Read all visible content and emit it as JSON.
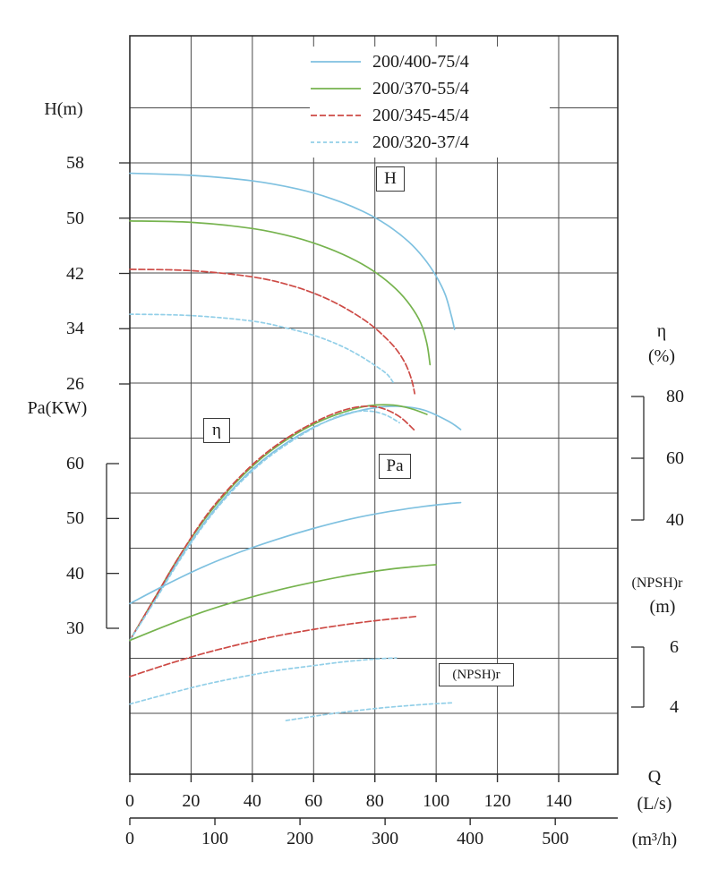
{
  "chart_data": {
    "type": "line",
    "x_axis": {
      "name": "Q",
      "unit": "(L/s)",
      "ticks": [
        0,
        20,
        40,
        60,
        80,
        100,
        120,
        140
      ],
      "range": [
        0,
        159
      ]
    },
    "x_axis_secondary": {
      "unit": "(m³/h)",
      "ticks": [
        0,
        100,
        200,
        300,
        400,
        500
      ]
    },
    "y_axes": {
      "head": {
        "label": "H(m)",
        "ticks": [
          58,
          50,
          42,
          34,
          26
        ]
      },
      "power": {
        "label": "Pa(KW)",
        "ticks": [
          60,
          50,
          40,
          30
        ]
      },
      "efficiency": {
        "label": "η",
        "unit": "(%)",
        "ticks": [
          80,
          60,
          40
        ]
      },
      "npsh": {
        "label": "(NPSH)r",
        "unit": "(m)",
        "ticks": [
          6,
          4
        ]
      }
    },
    "legend": [
      {
        "label": "200/400-75/4",
        "color": "#7fc1e0",
        "dash": ""
      },
      {
        "label": "200/370-55/4",
        "color": "#76b34e",
        "dash": ""
      },
      {
        "label": "200/345-45/4",
        "color": "#cd4a45",
        "dash": "7 3"
      },
      {
        "label": "200/320-37/4",
        "color": "#92cfe8",
        "dash": "4 3"
      }
    ],
    "annotations": [
      {
        "text": "H"
      },
      {
        "text": "η"
      },
      {
        "text": "Pa"
      },
      {
        "text": "(NPSH)r"
      }
    ],
    "series": [
      {
        "name": "head 200/400-75/4",
        "axis": "head",
        "legend": 0,
        "points": [
          [
            0,
            56.5
          ],
          [
            20,
            56.2
          ],
          [
            40,
            55.4
          ],
          [
            55,
            54.2
          ],
          [
            66,
            52.8
          ],
          [
            76,
            51.0
          ],
          [
            84,
            49.0
          ],
          [
            91,
            46.6
          ],
          [
            96,
            44.2
          ],
          [
            100,
            41.6
          ],
          [
            103,
            38.9
          ],
          [
            105,
            35.8
          ],
          [
            106,
            33.9
          ]
        ]
      },
      {
        "name": "head 200/370-55/4",
        "axis": "head",
        "legend": 1,
        "points": [
          [
            0,
            49.6
          ],
          [
            20,
            49.4
          ],
          [
            40,
            48.5
          ],
          [
            54,
            47.2
          ],
          [
            65,
            45.6
          ],
          [
            74,
            43.8
          ],
          [
            81,
            41.9
          ],
          [
            87,
            39.7
          ],
          [
            91.5,
            37.4
          ],
          [
            95,
            34.8
          ],
          [
            97,
            31.8
          ],
          [
            98,
            28.8
          ]
        ]
      },
      {
        "name": "head 200/345-45/4",
        "axis": "head",
        "legend": 2,
        "points": [
          [
            0,
            42.6
          ],
          [
            20,
            42.4
          ],
          [
            40,
            41.5
          ],
          [
            53,
            40.2
          ],
          [
            63,
            38.6
          ],
          [
            71,
            36.8
          ],
          [
            78,
            34.8
          ],
          [
            83,
            32.9
          ],
          [
            87,
            31.0
          ],
          [
            90,
            28.9
          ],
          [
            92,
            26.6
          ],
          [
            93,
            24.6
          ]
        ]
      },
      {
        "name": "head 200/320-37/4",
        "axis": "head",
        "legend": 3,
        "points": [
          [
            0,
            36.1
          ],
          [
            20,
            35.9
          ],
          [
            40,
            35.1
          ],
          [
            52,
            34.0
          ],
          [
            61,
            32.9
          ],
          [
            69,
            31.5
          ],
          [
            75,
            30.1
          ],
          [
            80,
            28.7
          ],
          [
            84,
            27.4
          ],
          [
            86,
            26.2
          ]
        ]
      },
      {
        "name": "efficiency 200/400-75/4",
        "axis": "efficiency",
        "legend": 0,
        "points": [
          [
            0,
            1
          ],
          [
            8,
            14
          ],
          [
            16,
            27
          ],
          [
            25,
            40
          ],
          [
            34,
            50.5
          ],
          [
            43,
            59
          ],
          [
            52,
            65.5
          ],
          [
            61,
            70.5
          ],
          [
            70,
            74
          ],
          [
            79,
            76.2
          ],
          [
            88,
            76.8
          ],
          [
            96,
            75.6
          ],
          [
            104,
            72.0
          ],
          [
            108,
            69.3
          ]
        ]
      },
      {
        "name": "efficiency 200/370-55/4",
        "axis": "efficiency",
        "legend": 1,
        "points": [
          [
            0,
            1
          ],
          [
            8,
            14.5
          ],
          [
            16,
            28
          ],
          [
            25,
            41
          ],
          [
            34,
            51.5
          ],
          [
            43,
            60
          ],
          [
            52,
            66.5
          ],
          [
            61,
            71.5
          ],
          [
            70,
            75
          ],
          [
            78,
            77
          ],
          [
            86,
            77.2
          ],
          [
            92,
            76
          ],
          [
            97,
            74.2
          ]
        ]
      },
      {
        "name": "efficiency 200/345-45/4",
        "axis": "efficiency",
        "legend": 2,
        "points": [
          [
            0,
            1
          ],
          [
            8,
            14.5
          ],
          [
            16,
            28
          ],
          [
            25,
            41.5
          ],
          [
            34,
            52
          ],
          [
            43,
            60.5
          ],
          [
            52,
            67
          ],
          [
            61,
            72
          ],
          [
            69,
            75.3
          ],
          [
            76,
            76.8
          ],
          [
            82,
            76.3
          ],
          [
            88,
            73.5
          ],
          [
            93,
            69
          ]
        ]
      },
      {
        "name": "efficiency 200/320-37/4",
        "axis": "efficiency",
        "legend": 3,
        "points": [
          [
            0,
            1
          ],
          [
            8,
            13.5
          ],
          [
            16,
            26.5
          ],
          [
            25,
            39.5
          ],
          [
            34,
            50
          ],
          [
            43,
            58.5
          ],
          [
            52,
            65
          ],
          [
            60,
            69.8
          ],
          [
            67,
            73.2
          ],
          [
            73,
            75
          ],
          [
            79,
            75.2
          ],
          [
            84,
            73.8
          ],
          [
            88,
            71.5
          ]
        ]
      },
      {
        "name": "power 200/400-75/4",
        "axis": "power",
        "legend": 0,
        "points": [
          [
            0,
            34.5
          ],
          [
            12,
            38
          ],
          [
            24,
            41.2
          ],
          [
            36,
            43.9
          ],
          [
            48,
            46.2
          ],
          [
            60,
            48.2
          ],
          [
            72,
            49.9
          ],
          [
            84,
            51.2
          ],
          [
            96,
            52.2
          ],
          [
            104,
            52.7
          ],
          [
            108,
            52.9
          ]
        ]
      },
      {
        "name": "power 200/370-55/4",
        "axis": "power",
        "legend": 1,
        "points": [
          [
            0,
            27.8
          ],
          [
            12,
            30.5
          ],
          [
            24,
            33
          ],
          [
            36,
            35.1
          ],
          [
            48,
            36.9
          ],
          [
            60,
            38.4
          ],
          [
            72,
            39.7
          ],
          [
            84,
            40.7
          ],
          [
            94,
            41.3
          ],
          [
            100,
            41.6
          ]
        ]
      },
      {
        "name": "power 200/345-45/4",
        "axis": "power",
        "legend": 2,
        "points": [
          [
            0,
            21.2
          ],
          [
            12,
            23.4
          ],
          [
            24,
            25.4
          ],
          [
            36,
            27.1
          ],
          [
            48,
            28.6
          ],
          [
            60,
            29.8
          ],
          [
            72,
            30.8
          ],
          [
            82,
            31.5
          ],
          [
            91,
            32.0
          ],
          [
            94,
            32.2
          ]
        ]
      },
      {
        "name": "power 200/320-37/4",
        "axis": "power",
        "legend": 3,
        "points": [
          [
            0,
            16.2
          ],
          [
            12,
            18
          ],
          [
            24,
            19.7
          ],
          [
            36,
            21.1
          ],
          [
            48,
            22.3
          ],
          [
            60,
            23.2
          ],
          [
            70,
            23.9
          ],
          [
            80,
            24.4
          ],
          [
            87,
            24.6
          ]
        ]
      },
      {
        "name": "npsh-r",
        "axis": "npsh",
        "legend": 3,
        "points": [
          [
            51,
            3.55
          ],
          [
            58,
            3.66
          ],
          [
            66,
            3.78
          ],
          [
            74,
            3.88
          ],
          [
            82,
            3.97
          ],
          [
            90,
            4.04
          ],
          [
            98,
            4.1
          ],
          [
            105,
            4.14
          ]
        ]
      }
    ],
    "layout_hints": {
      "grid": "on",
      "legend_position": "top-inside",
      "secondary_x_axis": "below primary"
    }
  }
}
